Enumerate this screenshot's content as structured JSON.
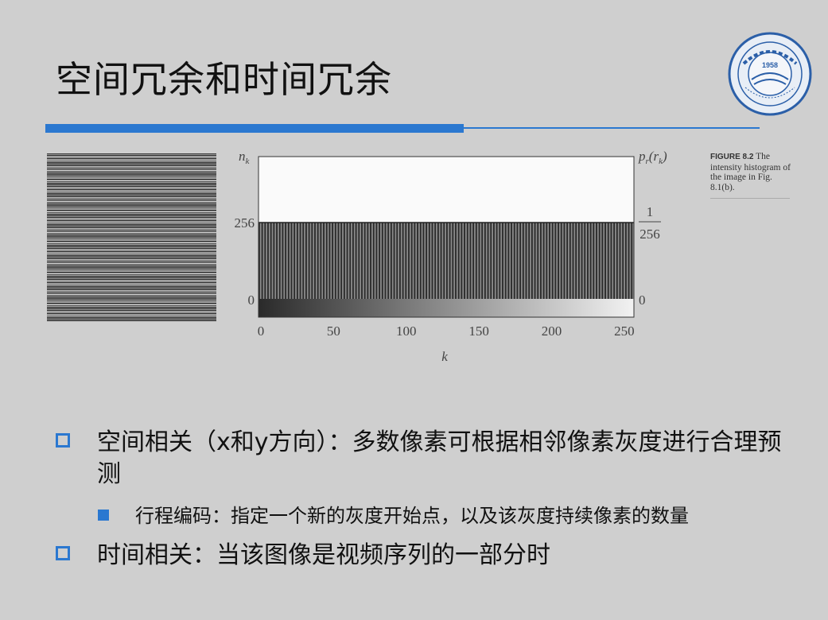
{
  "title": "空间冗余和时间冗余",
  "logo": {
    "icon": "university-seal-icon",
    "year": "1958"
  },
  "accent_color": "#2b78d0",
  "figure": {
    "left_axis_label": "n_k",
    "right_axis_label": "p_r(r_k)",
    "left_ticks": [
      "256",
      "0"
    ],
    "right_ticks": [
      "1",
      "256",
      "0"
    ],
    "x_ticks": [
      "0",
      "50",
      "100",
      "150",
      "200",
      "250"
    ],
    "x_label": "k",
    "caption_bold": "FIGURE 8.2",
    "caption_text": "The intensity histogram of the image in Fig. 8.1(b).",
    "histogram_value": 256,
    "bins": 256
  },
  "bullets": {
    "item1": "空间相关（x和y方向）：多数像素可根据相邻像素灰度进行合理预测",
    "item1_sub": "行程编码：指定一个新的灰度开始点，以及该灰度持续像素的数量",
    "item2": "时间相关：当该图像是视频序列的一部分时"
  }
}
